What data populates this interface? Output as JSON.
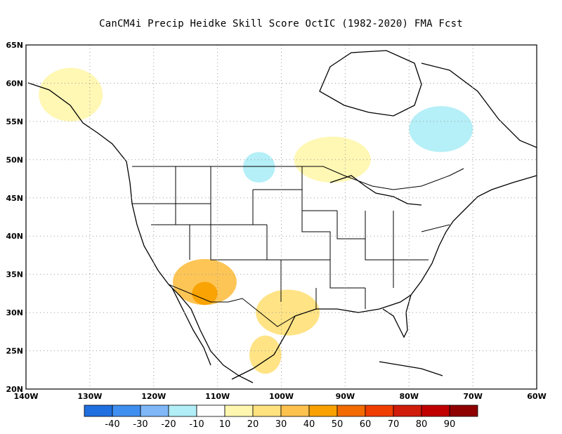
{
  "title": "CanCM4i Precip Heidke Skill Score OctIC (1982-2020) FMA Fcst",
  "map": {
    "lat_ticks": [
      "65N",
      "60N",
      "55N",
      "50N",
      "45N",
      "40N",
      "35N",
      "30N",
      "25N",
      "20N"
    ],
    "lon_ticks": [
      "140W",
      "130W",
      "120W",
      "110W",
      "100W",
      "90W",
      "80W",
      "70W",
      "60W"
    ],
    "lat_range": [
      20,
      65
    ],
    "lon_range": [
      -140,
      -60
    ],
    "grid": "dotted"
  },
  "colorbar": {
    "labels": [
      "-40",
      "-30",
      "-20",
      "-10",
      "10",
      "20",
      "30",
      "40",
      "50",
      "60",
      "70",
      "80",
      "90"
    ],
    "colors": [
      "#1f6fe0",
      "#3f8ff0",
      "#7fb7f7",
      "#b1eef7",
      "#ffffff",
      "#fff7b0",
      "#ffe17e",
      "#fdc24d",
      "#f9a100",
      "#f26a00",
      "#f03d00",
      "#d01c0b",
      "#c00000",
      "#8f0000"
    ]
  },
  "regions": [
    {
      "name": "southwest-orange",
      "color": "#fdc24d",
      "lat": [
        31,
        37
      ],
      "lon": [
        -117,
        -107
      ]
    },
    {
      "name": "arizona-deep",
      "color": "#f9a100",
      "lat": [
        31,
        34
      ],
      "lon": [
        -114,
        -110
      ]
    },
    {
      "name": "texas-yellow",
      "color": "#ffe17e",
      "lat": [
        27,
        33
      ],
      "lon": [
        -104,
        -94
      ]
    },
    {
      "name": "great-plains-blue",
      "color": "#b1eef7",
      "lat": [
        47,
        51
      ],
      "lon": [
        -106,
        -101
      ]
    },
    {
      "name": "hudson-blue",
      "color": "#b1eef7",
      "lat": [
        51,
        57
      ],
      "lon": [
        -80,
        -70
      ]
    },
    {
      "name": "canada-yellow",
      "color": "#fff7b0",
      "lat": [
        47,
        53
      ],
      "lon": [
        -98,
        -86
      ]
    },
    {
      "name": "alaska-yellow",
      "color": "#fff7b0",
      "lat": [
        55,
        62
      ],
      "lon": [
        -138,
        -128
      ]
    },
    {
      "name": "mexico-yellow",
      "color": "#ffe17e",
      "lat": [
        22,
        27
      ],
      "lon": [
        -105,
        -100
      ]
    }
  ]
}
